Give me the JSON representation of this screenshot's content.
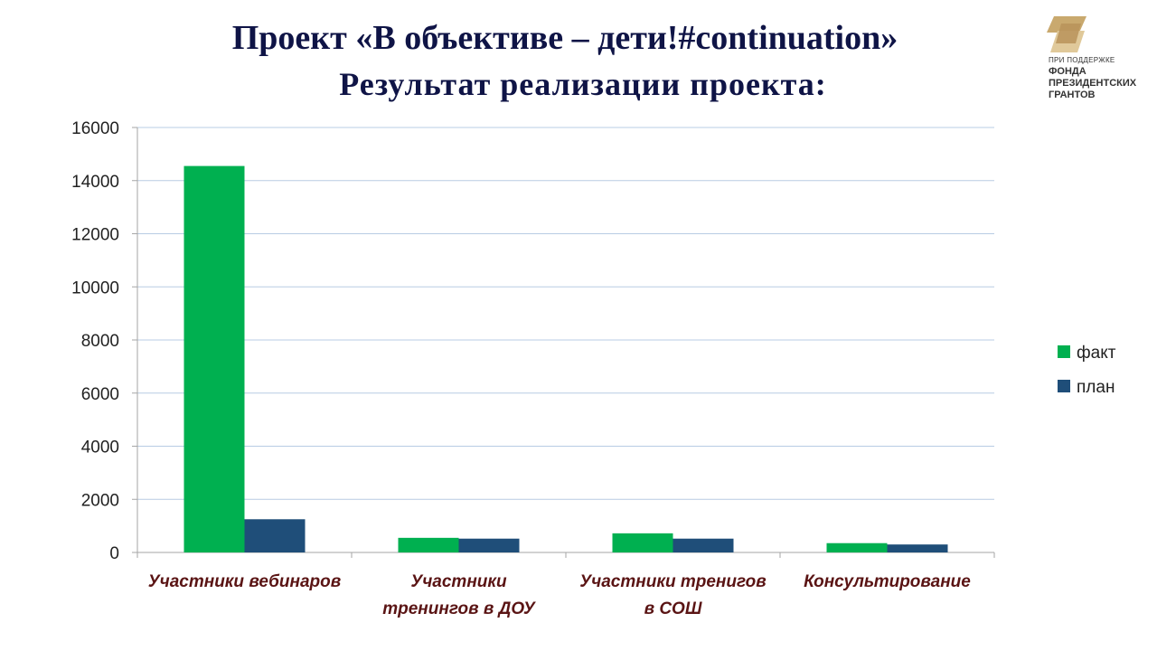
{
  "header": {
    "title_line1": "Проект «В объективе – дети!#continuation»",
    "title_line2": "Результат реализации проекта:"
  },
  "logo": {
    "small_text": "ПРИ ПОДДЕРЖКЕ",
    "line1": "ФОНДА",
    "line2": "ПРЕЗИДЕНТСКИХ",
    "line3": "ГРАНТОВ",
    "colors": [
      "#c9a96e",
      "#e0c99a"
    ]
  },
  "chart_data": {
    "type": "bar",
    "categories": [
      [
        "Участники вебинаров"
      ],
      [
        "Участники",
        "тренингов в ДОУ"
      ],
      [
        "Участники тренигов",
        "в СОШ"
      ],
      [
        "Консультирование"
      ]
    ],
    "series": [
      {
        "name": "факт",
        "color": "#00b050",
        "values": [
          14550,
          550,
          720,
          350
        ]
      },
      {
        "name": "план",
        "color": "#1f4e79",
        "values": [
          1250,
          520,
          520,
          300
        ]
      }
    ],
    "ylim": [
      0,
      16000
    ],
    "yticks": [
      0,
      2000,
      4000,
      6000,
      8000,
      10000,
      12000,
      14000,
      16000
    ],
    "grid": true,
    "legend_position": "right",
    "title": "",
    "xlabel": "",
    "ylabel": ""
  }
}
